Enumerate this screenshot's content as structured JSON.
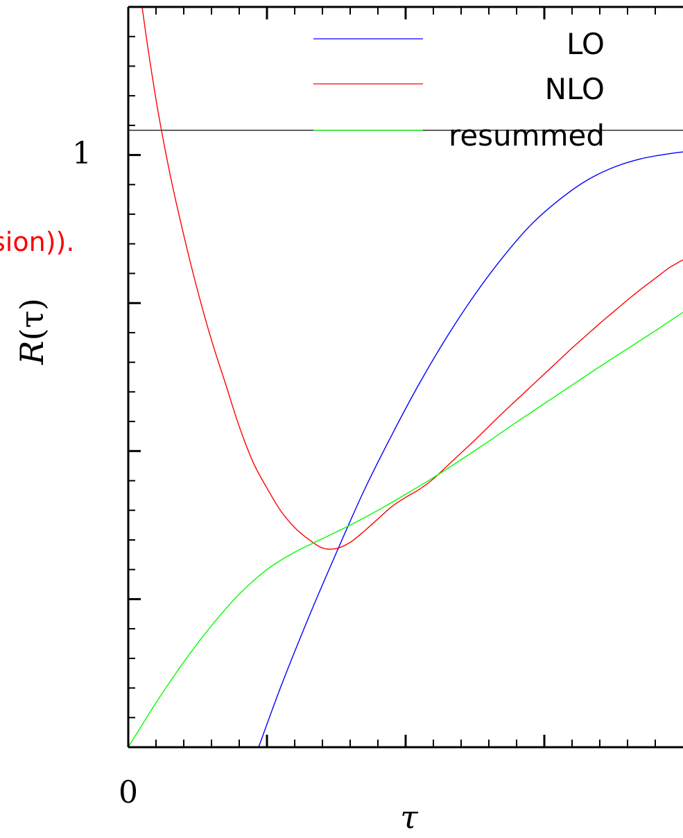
{
  "chart_data": {
    "type": "line",
    "xlabel": "τ",
    "ylabel_main": "R",
    "ylabel_arg": "(τ)",
    "x_tick_labels": [
      "0"
    ],
    "y_tick_labels": [
      "1"
    ],
    "cropped_text": "sion)).",
    "reference_line": {
      "y": 1.0
    },
    "xlim": [
      0.0,
      0.2
    ],
    "ylim": [
      0.0,
      1.2
    ],
    "legend_position": "top-right",
    "colors": {
      "LO": "#0000ff",
      "NLO": "#ff0000",
      "resummed": "#00ff00",
      "axes": "#000000",
      "cropped_text": "#ff0000"
    },
    "series": [
      {
        "name": "LO",
        "x": [
          0.047,
          0.055,
          0.065,
          0.075,
          0.085,
          0.095,
          0.105,
          0.115,
          0.125,
          0.135,
          0.145,
          0.155,
          0.165,
          0.175,
          0.185,
          0.195,
          0.2
        ],
        "y": [
          0.0,
          0.098,
          0.21,
          0.315,
          0.416,
          0.506,
          0.59,
          0.666,
          0.734,
          0.794,
          0.846,
          0.886,
          0.918,
          0.94,
          0.954,
          0.962,
          0.965
        ]
      },
      {
        "name": "NLO",
        "x": [
          0.0,
          0.005,
          0.01,
          0.015,
          0.02,
          0.025,
          0.03,
          0.035,
          0.04,
          0.045,
          0.05,
          0.055,
          0.06,
          0.065,
          0.07,
          0.075,
          0.08,
          0.085,
          0.09,
          0.095,
          0.1,
          0.105,
          0.11,
          0.115,
          0.12,
          0.125,
          0.13,
          0.135,
          0.14,
          0.145,
          0.15,
          0.155,
          0.16,
          0.165,
          0.17,
          0.175,
          0.18,
          0.185,
          0.19,
          0.195,
          0.2
        ],
        "y": [
          1.39,
          1.2,
          1.05,
          0.93,
          0.83,
          0.74,
          0.66,
          0.59,
          0.52,
          0.462,
          0.42,
          0.383,
          0.356,
          0.337,
          0.323,
          0.322,
          0.332,
          0.35,
          0.37,
          0.39,
          0.405,
          0.418,
          0.435,
          0.456,
          0.477,
          0.498,
          0.52,
          0.542,
          0.563,
          0.584,
          0.605,
          0.626,
          0.647,
          0.667,
          0.687,
          0.706,
          0.725,
          0.743,
          0.76,
          0.777,
          0.79
        ]
      },
      {
        "name": "resummed",
        "x": [
          0.0,
          0.01,
          0.02,
          0.03,
          0.04,
          0.05,
          0.06,
          0.07,
          0.08,
          0.09,
          0.1,
          0.11,
          0.12,
          0.13,
          0.14,
          0.15,
          0.16,
          0.17,
          0.18,
          0.19,
          0.2
        ],
        "y": [
          0.0,
          0.072,
          0.138,
          0.197,
          0.248,
          0.288,
          0.316,
          0.338,
          0.36,
          0.384,
          0.41,
          0.437,
          0.466,
          0.496,
          0.527,
          0.557,
          0.587,
          0.617,
          0.646,
          0.675,
          0.705
        ]
      }
    ]
  }
}
